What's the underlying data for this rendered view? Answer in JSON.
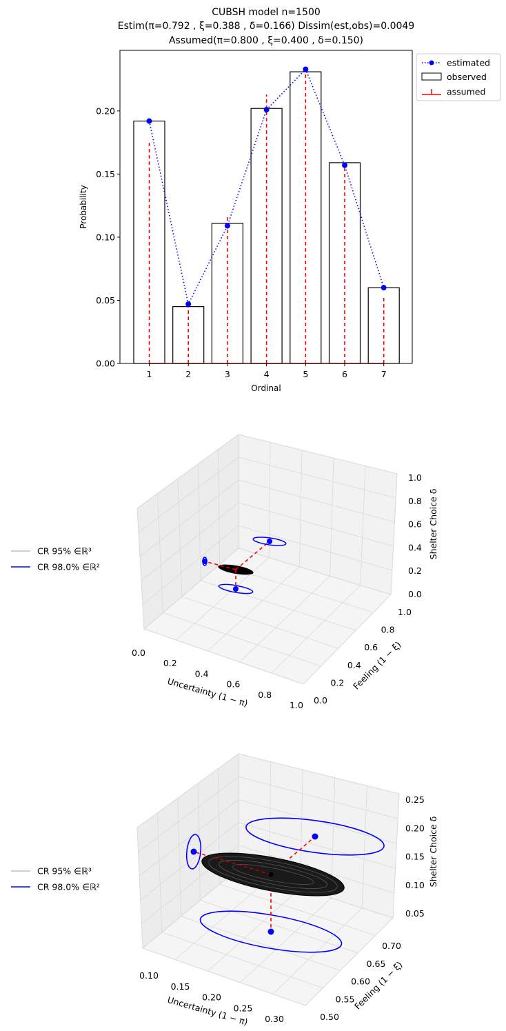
{
  "chart_data": [
    {
      "type": "bar",
      "title_lines": [
        "CUBSH model    n=1500",
        "Estim(π=0.792 , ξ=0.388 , δ=0.166)    Dissim(est,obs)=0.0049",
        "Assumed(π=0.800 , ξ=0.400 , δ=0.150)"
      ],
      "xlabel": "Ordinal",
      "ylabel": "Probability",
      "categories": [
        "1",
        "2",
        "3",
        "4",
        "5",
        "6",
        "7"
      ],
      "yticks": [
        "0.00",
        "0.05",
        "0.10",
        "0.15",
        "0.20"
      ],
      "ylim": [
        0,
        0.248
      ],
      "series": [
        {
          "name": "estimated",
          "kind": "line+markers",
          "style": "dotted",
          "color": "#0000ff",
          "values": [
            0.192,
            0.047,
            0.109,
            0.201,
            0.233,
            0.157,
            0.06
          ]
        },
        {
          "name": "observed",
          "kind": "bar",
          "color": "#000000",
          "values": [
            0.192,
            0.045,
            0.111,
            0.202,
            0.231,
            0.159,
            0.06
          ]
        },
        {
          "name": "assumed",
          "kind": "stem",
          "style": "dashed",
          "color": "#ff0000",
          "values": [
            0.177,
            0.045,
            0.118,
            0.213,
            0.235,
            0.158,
            0.052
          ]
        }
      ],
      "legend": {
        "position": "outside-top-right",
        "entries": [
          "estimated",
          "observed",
          "assumed"
        ]
      },
      "grid": false
    },
    {
      "type": "scatter3d",
      "xlabel": "Uncertainty (1 − π)",
      "ylabel": "Feeling (1 − ξ)",
      "zlabel": "Shelter Choice δ",
      "xticks": [
        "0.0",
        "0.2",
        "0.4",
        "0.6",
        "0.8",
        "1.0"
      ],
      "yticks": [
        "0.0",
        "0.2",
        "0.4",
        "0.6",
        "0.8",
        "1.0"
      ],
      "zticks": [
        "0.0",
        "0.2",
        "0.4",
        "0.6",
        "0.8",
        "1.0"
      ],
      "estimate": {
        "x": 0.208,
        "y": 0.612,
        "z": 0.166
      },
      "legend": {
        "position": "left",
        "entries": [
          {
            "label": "CR 95%  ∈ℝ³",
            "color": "#bfbfbf"
          },
          {
            "label": "CR 98.0%  ∈ℝ²",
            "color": "#0000ff"
          }
        ]
      }
    },
    {
      "type": "scatter3d",
      "xlabel": "Uncertainty (1 − π)",
      "ylabel": "Feeling (1 − ξ)",
      "zlabel": "Shelter Choice δ",
      "xticks": [
        "0.10",
        "0.15",
        "0.20",
        "0.25",
        "0.30"
      ],
      "yticks": [
        "0.50",
        "0.55",
        "0.60",
        "0.65",
        "0.70"
      ],
      "zticks": [
        "0.05",
        "0.10",
        "0.15",
        "0.20",
        "0.25"
      ],
      "estimate": {
        "x": 0.208,
        "y": 0.612,
        "z": 0.166
      },
      "legend": {
        "position": "left",
        "entries": [
          {
            "label": "CR 95%  ∈ℝ³",
            "color": "#bfbfbf"
          },
          {
            "label": "CR 98.0%  ∈ℝ²",
            "color": "#0000ff"
          }
        ]
      }
    }
  ]
}
